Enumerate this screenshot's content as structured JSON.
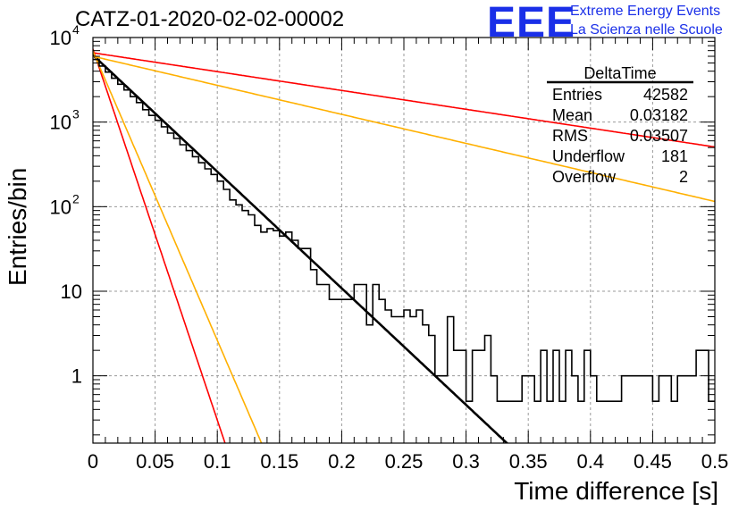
{
  "chart_data": {
    "type": "histogram",
    "title": "CATZ-01-2020-02-02-00002",
    "xlabel": "Time difference [s]",
    "ylabel": "Entries/bin",
    "xlim": [
      0,
      0.5
    ],
    "ylim": [
      0.16,
      10000
    ],
    "yscale": "log",
    "grid": true,
    "x_ticks": [
      "0",
      "0.05",
      "0.1",
      "0.15",
      "0.2",
      "0.25",
      "0.3",
      "0.35",
      "0.4",
      "0.45",
      "0.5"
    ],
    "y_ticks": [
      {
        "value": 1,
        "label": "1"
      },
      {
        "value": 10,
        "label": "10"
      },
      {
        "value": 100,
        "label": "10",
        "exp": "2"
      },
      {
        "value": 1000,
        "label": "10",
        "exp": "3"
      },
      {
        "value": 10000,
        "label": "10",
        "exp": "4"
      }
    ],
    "histogram": {
      "color": "#000000",
      "bin_width": 0.005,
      "x_start": 0,
      "counts": [
        5500,
        4600,
        3900,
        3300,
        2800,
        2400,
        2000,
        1700,
        1400,
        1200,
        1050,
        880,
        740,
        640,
        540,
        460,
        390,
        330,
        280,
        240,
        200,
        160,
        120,
        105,
        90,
        80,
        60,
        50,
        55,
        52,
        45,
        50,
        40,
        32,
        32,
        18,
        12,
        12,
        8,
        8,
        8,
        8,
        12,
        12,
        4,
        12,
        8,
        6,
        5,
        5,
        6,
        5,
        6,
        4,
        3,
        1,
        1,
        5,
        2,
        2,
        0.5,
        2,
        2,
        3,
        1,
        0.5,
        0.5,
        0.5,
        0.5,
        1,
        1,
        0.5,
        2,
        0.5,
        2,
        0.5,
        2,
        1,
        0.5,
        2,
        1,
        0.5,
        0.5,
        0.5,
        0.5,
        1,
        1,
        1,
        1,
        1,
        0.5,
        1,
        1,
        0.5,
        1,
        1,
        1,
        2,
        2,
        0.5
      ]
    },
    "fit_lines": [
      {
        "name": "",
        "color": "#000000",
        "width": 2.6,
        "A": 6200,
        "tau": 0.0315
      },
      {
        "name": "",
        "color": "#ff0000",
        "width": 1.6,
        "A": 6600,
        "tau": 0.195
      },
      {
        "name": "",
        "color": "#ffb000",
        "width": 1.6,
        "A": 6000,
        "tau": 0.1265
      },
      {
        "name": "",
        "color": "#ff0000",
        "width": 1.6,
        "A": 7300,
        "tau": 0.0099
      },
      {
        "name": "",
        "color": "#ffb000",
        "width": 1.6,
        "A": 6900,
        "tau": 0.0127
      }
    ],
    "stats_box": {
      "title": "DeltaTime",
      "rows": [
        {
          "label": "Entries",
          "value": "42582"
        },
        {
          "label": "Mean",
          "value": "0.03182"
        },
        {
          "label": "RMS",
          "value": "0.03507"
        },
        {
          "label": "Underflow",
          "value": "181"
        },
        {
          "label": "Overflow",
          "value": "2"
        }
      ]
    }
  },
  "logo": {
    "text": "EEE",
    "line1": "Extreme Energy Events",
    "line2": "La Scienza nelle Scuole"
  }
}
